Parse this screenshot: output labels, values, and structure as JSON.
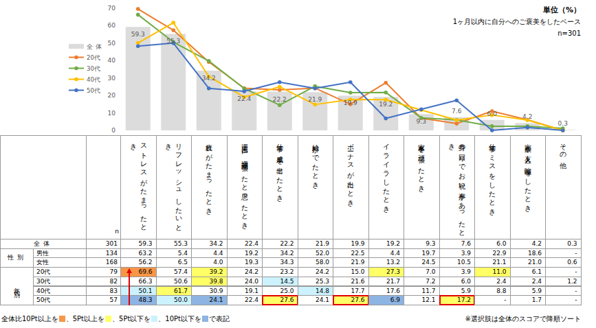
{
  "chart_data": {
    "type": "bar",
    "annotations": [
      "単位（%）",
      "1ヶ月以内に自分へのご褒美をしたベース",
      "n=301"
    ],
    "categories": [
      "ストレスがたまったとき",
      "リフレッシュしたいとき",
      "疲れがたまったとき",
      "週末に1週間頑張ったと思ったとき",
      "仕事で成果を出せたとき",
      "給料がでたとき",
      "ボーナスが出たとき",
      "イライラしたとき",
      "家事を頑張ったとき",
      "身の回りでお祝い事があったとき",
      "仕事でミスをしたとき",
      "家族や友人と喧嘩をしたとき",
      "その他"
    ],
    "series": [
      {
        "name": "全体",
        "type": "bar",
        "color": "#dcdcdc",
        "data_labels": true,
        "values": [
          59.3,
          55.3,
          34.2,
          22.4,
          22.2,
          21.9,
          19.9,
          19.2,
          9.3,
          7.6,
          6.0,
          4.2,
          0.3
        ]
      },
      {
        "name": "20代",
        "type": "line",
        "color": "#ed7d31",
        "marker": "circle",
        "values": [
          69.6,
          57.4,
          39.2,
          24.2,
          23.2,
          24.2,
          15.0,
          27.3,
          7.0,
          3.9,
          11.0,
          6.1,
          0
        ]
      },
      {
        "name": "30代",
        "type": "line",
        "color": "#70ad47",
        "marker": "circle",
        "values": [
          66.3,
          50.6,
          39.8,
          24.0,
          14.5,
          25.3,
          21.6,
          21.7,
          7.2,
          6.0,
          2.4,
          2.4,
          1.2
        ]
      },
      {
        "name": "40代",
        "type": "line",
        "color": "#ffc000",
        "marker": "circle",
        "values": [
          50.1,
          61.7,
          30.9,
          19.1,
          25.0,
          14.8,
          17.7,
          17.6,
          11.7,
          5.9,
          8.8,
          5.9,
          0
        ]
      },
      {
        "name": "50代",
        "type": "line",
        "color": "#4472c4",
        "marker": "circle",
        "values": [
          48.3,
          50.0,
          24.1,
          22.4,
          27.6,
          24.1,
          27.6,
          6.9,
          12.1,
          17.2,
          0,
          1.7,
          0
        ]
      }
    ],
    "ylim": [
      0,
      70
    ],
    "yticks": [
      0,
      10,
      20,
      30,
      40,
      50,
      60,
      70
    ],
    "grid": false,
    "legend": "left"
  },
  "table": {
    "n_header": "n",
    "groups": [
      {
        "label": "全体",
        "rows": [
          {
            "n": 301,
            "cells": [
              "59.3",
              "55.3",
              "34.2",
              "22.4",
              "22.2",
              "21.9",
              "19.9",
              "19.2",
              "9.3",
              "7.6",
              "6.0",
              "4.2",
              "0.3"
            ],
            "fills": [
              null,
              null,
              null,
              null,
              null,
              null,
              null,
              null,
              null,
              null,
              null,
              null,
              null
            ],
            "boxed": [
              false,
              false,
              false,
              false,
              false,
              false,
              false,
              false,
              false,
              false,
              false,
              false,
              false
            ]
          }
        ]
      },
      {
        "label": "性別",
        "rows": [
          {
            "label": "男性",
            "n": 134,
            "cells": [
              "63.2",
              "5.4",
              "4.4",
              "19.2",
              "34.2",
              "52.0",
              "22.5",
              "4.4",
              "19.7",
              "3.9",
              "22.9",
              "18.6",
              "-"
            ],
            "fills": [
              null,
              null,
              null,
              null,
              null,
              null,
              null,
              null,
              null,
              null,
              null,
              null,
              null
            ],
            "boxed": [
              false,
              false,
              false,
              false,
              false,
              false,
              false,
              false,
              false,
              false,
              false,
              false,
              false
            ]
          },
          {
            "label": "女性",
            "n": 168,
            "cells": [
              "56.2",
              "6.5",
              "4.0",
              "19.3",
              "34.3",
              "58.0",
              "21.9",
              "13.2",
              "24.5",
              "10.5",
              "21.1",
              "21.0",
              "0.6"
            ],
            "fills": [
              null,
              null,
              null,
              null,
              null,
              null,
              null,
              null,
              null,
              null,
              null,
              null,
              null
            ],
            "boxed": [
              false,
              false,
              false,
              false,
              false,
              false,
              false,
              false,
              false,
              false,
              false,
              false,
              false
            ]
          }
        ]
      },
      {
        "label": "年代別",
        "rows": [
          {
            "label": "20代",
            "n": 79,
            "cells": [
              "69.6",
              "57.4",
              "39.2",
              "24.2",
              "23.2",
              "24.2",
              "15.0",
              "27.3",
              "7.0",
              "3.9",
              "11.0",
              "6.1",
              "-"
            ],
            "fills": [
              "#f79646",
              null,
              "#ffff66",
              null,
              null,
              null,
              null,
              "#ffff66",
              null,
              null,
              "#ffff66",
              null,
              null
            ],
            "boxed": [
              false,
              false,
              false,
              false,
              false,
              false,
              false,
              false,
              false,
              false,
              false,
              false,
              false
            ]
          },
          {
            "label": "30代",
            "n": 82,
            "cells": [
              "66.3",
              "50.6",
              "39.8",
              "24.0",
              "14.5",
              "25.3",
              "21.6",
              "21.7",
              "7.2",
              "6.0",
              "2.4",
              "2.4",
              "1.2"
            ],
            "fills": [
              null,
              null,
              "#ffff66",
              null,
              "#ccf2ff",
              null,
              null,
              null,
              null,
              null,
              null,
              null,
              null
            ],
            "boxed": [
              false,
              false,
              false,
              false,
              false,
              false,
              false,
              false,
              false,
              false,
              false,
              false,
              false
            ]
          },
          {
            "label": "40代",
            "n": 83,
            "cells": [
              "50.1",
              "61.7",
              "30.9",
              "19.1",
              "25.0",
              "14.8",
              "17.7",
              "17.6",
              "11.7",
              "5.9",
              "8.8",
              "5.9",
              "-"
            ],
            "fills": [
              "#ccf2ff",
              "#ffff66",
              null,
              null,
              null,
              "#ccf2ff",
              null,
              null,
              null,
              null,
              null,
              null,
              null
            ],
            "boxed": [
              false,
              false,
              false,
              false,
              false,
              false,
              false,
              false,
              false,
              false,
              false,
              false,
              false
            ]
          },
          {
            "label": "50代",
            "n": 57,
            "cells": [
              "48.3",
              "50.0",
              "24.1",
              "22.4",
              "27.6",
              "24.1",
              "27.6",
              "6.9",
              "12.1",
              "17.2",
              "-",
              "1.7",
              "-"
            ],
            "fills": [
              "#8db4e2",
              "#ccf2ff",
              "#8db4e2",
              null,
              "#ffff66",
              null,
              "#ffff66",
              "#8db4e2",
              null,
              "#ffff66",
              null,
              null,
              null
            ],
            "boxed": [
              false,
              false,
              false,
              false,
              true,
              false,
              true,
              false,
              false,
              true,
              false,
              false,
              false
            ]
          }
        ]
      }
    ],
    "legend": {
      "parts": [
        "全体比10Pt以上を",
        "、5Pt以上を",
        "、5Pt以下を",
        "、10Pt以下を",
        "で表記"
      ],
      "colors": [
        "#f79646",
        "#ffff66",
        "#ccf2ff",
        "#8db4e2"
      ]
    },
    "note": "※選択肢は全体のスコアで降順ソート"
  }
}
